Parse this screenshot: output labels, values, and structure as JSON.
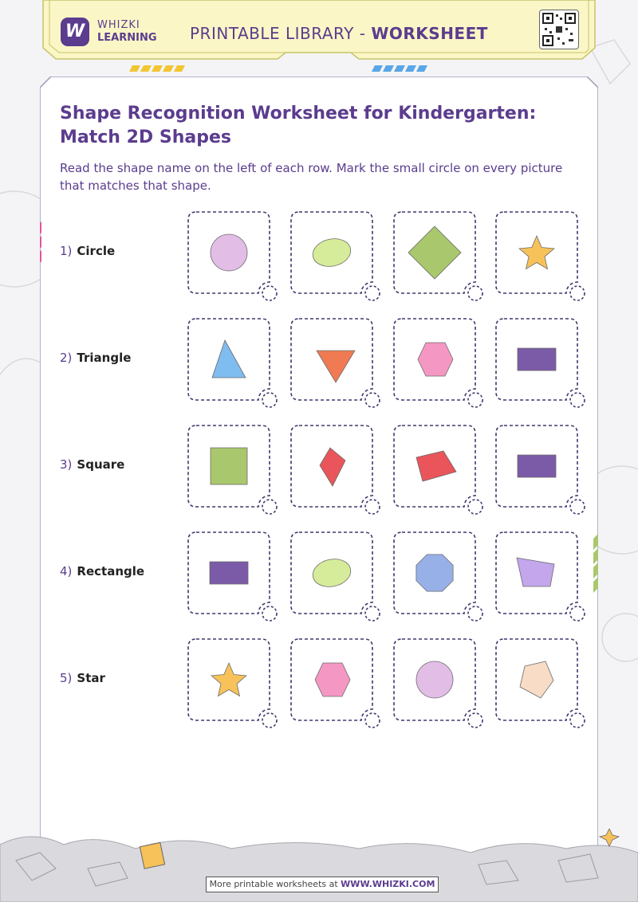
{
  "header": {
    "brand_line1": "WHIZKI",
    "brand_line2": "LEARNING",
    "logo_letter": "W",
    "title_prefix": "PRINTABLE LIBRARY - ",
    "title_strong": "WORKSHEET"
  },
  "worksheet": {
    "title": "Shape Recognition Worksheet for Kindergarten: Match 2D Shapes",
    "instructions": "Read the shape name on the left of each row. Mark the small circle on every picture that matches that shape.",
    "rows": [
      {
        "number": "1)",
        "name": "Circle",
        "shapes": [
          {
            "kind": "circle",
            "color": "#e2bde6"
          },
          {
            "kind": "ellipse",
            "color": "#d6ec9a"
          },
          {
            "kind": "diamond",
            "color": "#a9c76d"
          },
          {
            "kind": "star",
            "color": "#f7c25a"
          }
        ]
      },
      {
        "number": "2)",
        "name": "Triangle",
        "shapes": [
          {
            "kind": "triangle-right",
            "color": "#7fbcf0"
          },
          {
            "kind": "triangle-down",
            "color": "#f07a52"
          },
          {
            "kind": "hexagon",
            "color": "#f597c3"
          },
          {
            "kind": "rectangle",
            "color": "#7b5aa8"
          }
        ]
      },
      {
        "number": "3)",
        "name": "Square",
        "shapes": [
          {
            "kind": "square",
            "color": "#a9c76d"
          },
          {
            "kind": "kite",
            "color": "#e9555a"
          },
          {
            "kind": "quad",
            "color": "#e9555a"
          },
          {
            "kind": "rectangle",
            "color": "#7b5aa8"
          }
        ]
      },
      {
        "number": "4)",
        "name": "Rectangle",
        "shapes": [
          {
            "kind": "rectangle",
            "color": "#7b5aa8"
          },
          {
            "kind": "ellipse",
            "color": "#d6ec9a"
          },
          {
            "kind": "octagon",
            "color": "#98b0e8"
          },
          {
            "kind": "trapezoid",
            "color": "#c3a6ec"
          }
        ]
      },
      {
        "number": "5)",
        "name": "Star",
        "shapes": [
          {
            "kind": "star",
            "color": "#f7c25a"
          },
          {
            "kind": "hexagon",
            "color": "#f597c3"
          },
          {
            "kind": "circle",
            "color": "#e2bde6"
          },
          {
            "kind": "pentagon",
            "color": "#f8dcc6"
          }
        ]
      }
    ]
  },
  "footer": {
    "text_prefix": "More printable worksheets at ",
    "text_link": "WWW.WHIZKI.COM"
  },
  "colors": {
    "brand_purple": "#5b3c8e",
    "header_yellow": "#fbf6c6",
    "card_border": "#3d3a6e"
  }
}
